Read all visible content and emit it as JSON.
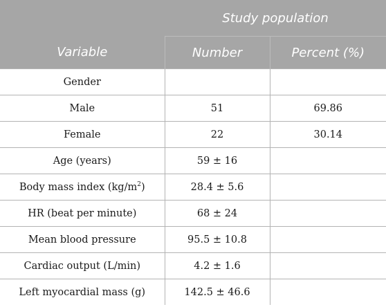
{
  "header": {
    "group_label": "Study population",
    "col_variable": "Variable",
    "col_number": "Number",
    "col_percent": "Percent (%)"
  },
  "rows": [
    {
      "variable": "Gender",
      "number": "",
      "percent": ""
    },
    {
      "variable": "Male",
      "number": "51",
      "percent": "69.86"
    },
    {
      "variable": "Female",
      "number": "22",
      "percent": "30.14"
    },
    {
      "variable": "Age (years)",
      "number": "59 ± 16",
      "percent": ""
    },
    {
      "variable": "Body mass index (kg/m",
      "variable_sup": "2",
      "variable_suffix": ")",
      "number": "28.4 ± 5.6",
      "percent": ""
    },
    {
      "variable": "HR (beat per minute)",
      "number": "68 ± 24",
      "percent": ""
    },
    {
      "variable": "Mean blood pressure",
      "number": "95.5 ± 10.8",
      "percent": ""
    },
    {
      "variable": "Cardiac output (L/min)",
      "number": "4.2 ± 1.6",
      "percent": ""
    },
    {
      "variable": "Left myocardial mass (g)",
      "number": "142.5 ± 46.6",
      "percent": ""
    }
  ],
  "colors": {
    "header_bg": "#a6a6a6",
    "header_text": "#ffffff",
    "grid": "#b3b3b3"
  }
}
